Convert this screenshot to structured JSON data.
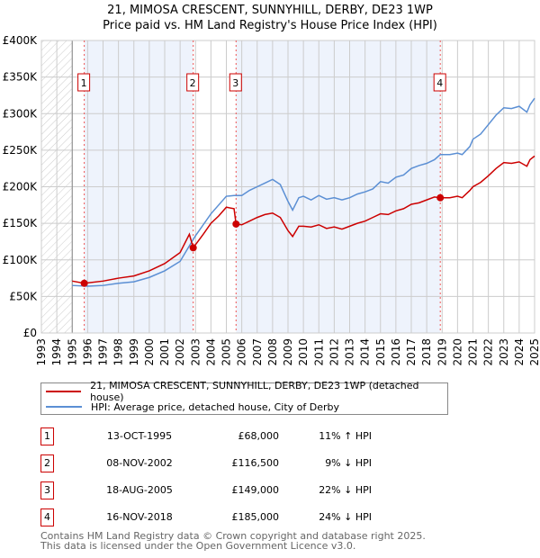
{
  "chart_data": {
    "type": "line",
    "title": "21, MIMOSA CRESCENT, SUNNYHILL, DERBY, DE23 1WP",
    "subtitle": "Price paid vs. HM Land Registry's House Price Index (HPI)",
    "xlim": [
      1993,
      2025
    ],
    "ylim": [
      0,
      400000
    ],
    "x_ticks": [
      "1993",
      "1994",
      "1995",
      "1996",
      "1997",
      "1998",
      "1999",
      "2000",
      "2001",
      "2002",
      "2003",
      "2004",
      "2005",
      "2006",
      "2007",
      "2008",
      "2009",
      "2010",
      "2011",
      "2012",
      "2013",
      "2014",
      "2015",
      "2016",
      "2017",
      "2018",
      "2019",
      "2020",
      "2021",
      "2022",
      "2023",
      "2024",
      "2025"
    ],
    "y_ticks": [
      {
        "v": 0,
        "label": "£0"
      },
      {
        "v": 50000,
        "label": "£50K"
      },
      {
        "v": 100000,
        "label": "£100K"
      },
      {
        "v": 150000,
        "label": "£150K"
      },
      {
        "v": 200000,
        "label": "£200K"
      },
      {
        "v": 250000,
        "label": "£250K"
      },
      {
        "v": 300000,
        "label": "£300K"
      },
      {
        "v": 350000,
        "label": "£350K"
      },
      {
        "v": 400000,
        "label": "£400K"
      }
    ],
    "grid": true,
    "series": [
      {
        "name": "21, MIMOSA CRESCENT, SUNNYHILL, DERBY, DE23 1WP (detached house)",
        "color": "#cc0000",
        "x": [
          1995,
          1995.78,
          1997,
          1998,
          1999,
          2000,
          2001,
          2002,
          2002.6,
          2002.85,
          2003.5,
          2004,
          2004.5,
          2005,
          2005.5,
          2005.63,
          2006,
          2006.5,
          2007,
          2007.5,
          2008,
          2008.5,
          2009,
          2009.3,
          2009.7,
          2010,
          2010.5,
          2011,
          2011.5,
          2012,
          2012.5,
          2013,
          2013.5,
          2014,
          2014.5,
          2015,
          2015.5,
          2016,
          2016.5,
          2017,
          2017.5,
          2018,
          2018.5,
          2018.88,
          2019.5,
          2020,
          2020.3,
          2020.8,
          2021,
          2021.5,
          2022,
          2022.5,
          2023,
          2023.5,
          2024,
          2024.5,
          2024.7,
          2025
        ],
        "y": [
          71,
          68,
          71,
          75,
          78,
          85,
          95,
          110,
          135,
          116.5,
          135,
          150,
          160,
          172,
          170,
          149,
          148,
          153,
          158,
          162,
          164,
          158,
          140,
          132,
          146,
          146,
          145,
          148,
          143,
          145,
          142,
          146,
          150,
          153,
          158,
          163,
          162,
          167,
          170,
          176,
          178,
          182,
          186,
          185,
          185,
          187,
          185,
          195,
          200,
          206,
          215,
          225,
          233,
          232,
          234,
          228,
          237,
          242
        ]
      },
      {
        "name": "HPI: Average price, detached house, City of Derby",
        "color": "#5b8fd4",
        "x": [
          1995,
          1996,
          1997,
          1998,
          1999,
          2000,
          2001,
          2002,
          2002.85,
          2003,
          2003.5,
          2004,
          2004.5,
          2005,
          2005.5,
          2006,
          2006.5,
          2007,
          2007.5,
          2008,
          2008.5,
          2009,
          2009.3,
          2009.7,
          2010,
          2010.5,
          2011,
          2011.5,
          2012,
          2012.5,
          2013,
          2013.5,
          2014,
          2014.5,
          2015,
          2015.5,
          2016,
          2016.5,
          2017,
          2017.5,
          2018,
          2018.5,
          2018.88,
          2019.5,
          2020,
          2020.3,
          2020.8,
          2021,
          2021.5,
          2022,
          2022.5,
          2023,
          2023.5,
          2024,
          2024.5,
          2024.7,
          2025
        ],
        "y": [
          65,
          64,
          65,
          68,
          70,
          76,
          85,
          98,
          128,
          133,
          148,
          163,
          175,
          187,
          188,
          188,
          195,
          200,
          205,
          210,
          203,
          180,
          168,
          185,
          187,
          182,
          188,
          183,
          185,
          182,
          185,
          190,
          193,
          197,
          207,
          205,
          213,
          216,
          225,
          229,
          232,
          237,
          244,
          244,
          246,
          244,
          255,
          265,
          272,
          285,
          298,
          308,
          307,
          310,
          302,
          312,
          321
        ]
      }
    ],
    "y_unit": "thousands GBP",
    "sales": [
      {
        "n": "1",
        "x": 1995.78,
        "price": 68000,
        "date": "13-OCT-1995",
        "price_label": "£68,000",
        "hpi": "11% ↑ HPI"
      },
      {
        "n": "2",
        "x": 2002.85,
        "price": 116500,
        "date": "08-NOV-2002",
        "price_label": "£116,500",
        "hpi": "9% ↓ HPI"
      },
      {
        "n": "3",
        "x": 2005.63,
        "price": 149000,
        "date": "18-AUG-2005",
        "price_label": "£149,000",
        "hpi": "22% ↓ HPI"
      },
      {
        "n": "4",
        "x": 2018.88,
        "price": 185000,
        "date": "16-NOV-2018",
        "price_label": "£185,000",
        "hpi": "24% ↓ HPI"
      }
    ]
  },
  "footer": {
    "line1": "Contains HM Land Registry data © Crown copyright and database right 2025.",
    "line2": "This data is licensed under the Open Government Licence v3.0."
  }
}
